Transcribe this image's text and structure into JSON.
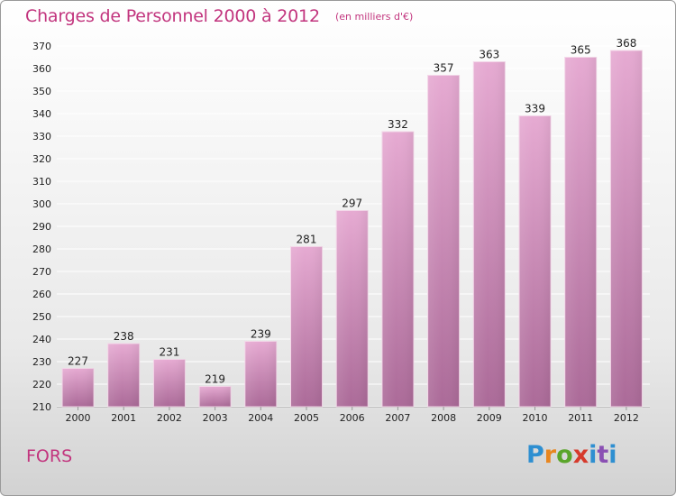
{
  "header": {
    "title": "Charges de Personnel 2000 à 2012",
    "subtitle": "(en milliers d'€)"
  },
  "footer": {
    "town": "FORS",
    "logo": [
      "P",
      "r",
      "o",
      "x",
      "i",
      "t",
      "i"
    ]
  },
  "colors": {
    "accent": "#c2357e",
    "bar_top": "#e6aad2",
    "bar_bottom": "#ab6a98",
    "grid": "#ffffff",
    "axis_text": "#222222"
  },
  "chart_data": {
    "type": "bar",
    "categories": [
      "2000",
      "2001",
      "2002",
      "2003",
      "2004",
      "2005",
      "2006",
      "2007",
      "2008",
      "2009",
      "2010",
      "2011",
      "2012"
    ],
    "values": [
      227,
      238,
      231,
      219,
      239,
      281,
      297,
      332,
      357,
      363,
      339,
      365,
      368
    ],
    "ylim": [
      210,
      370
    ],
    "yticks": [
      210,
      220,
      230,
      240,
      250,
      260,
      270,
      280,
      290,
      300,
      310,
      320,
      330,
      340,
      350,
      360,
      370
    ],
    "grid": true,
    "data_labels": true
  }
}
